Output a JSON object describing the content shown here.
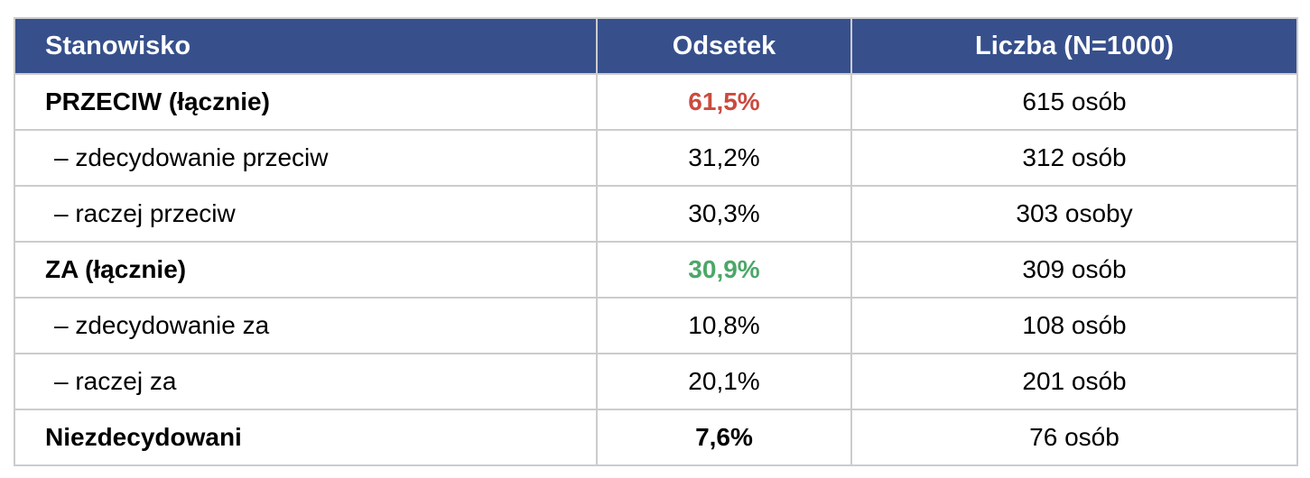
{
  "table": {
    "columns": {
      "position": "Stanowisko",
      "percent": "Odsetek",
      "count": "Liczba (N=1000)"
    },
    "rows": [
      {
        "label": "PRZECIW (łącznie)",
        "percent": "61,5%",
        "count": "615 osób",
        "percent_color": "#CB4A3E"
      },
      {
        "label": "– zdecydowanie przeciw",
        "percent": "31,2%",
        "count": "312 osób",
        "percent_color": null
      },
      {
        "label": "– raczej przeciw",
        "percent": "30,3%",
        "count": "303 osoby",
        "percent_color": null
      },
      {
        "label": "ZA (łącznie)",
        "percent": "30,9%",
        "count": "309 osób",
        "percent_color": "#4CA769"
      },
      {
        "label": "– zdecydowanie za",
        "percent": "10,8%",
        "count": "108 osób",
        "percent_color": null
      },
      {
        "label": "– raczej za",
        "percent": "20,1%",
        "count": "201 osób",
        "percent_color": null
      },
      {
        "label": "Niezdecydowani",
        "percent": "7,6%",
        "count": "76 osób",
        "percent_color": null
      }
    ]
  },
  "colors": {
    "header_background": "#37508C",
    "header_text": "#FFFFFF",
    "grid_border": "#CCCCCC",
    "against_accent": "#CB4A3E",
    "for_accent": "#4CA769",
    "body_text": "#000000"
  },
  "chart_data": {
    "type": "table",
    "title": "",
    "columns": [
      "Stanowisko",
      "Odsetek",
      "Liczba (N=1000)"
    ],
    "sample_size": 1000,
    "rows": [
      {
        "stanowisko": "PRZECIW (łącznie)",
        "odsetek_pct": 61.5,
        "liczba": 615,
        "liczba_label": "615 osób",
        "emphasis": "bold-red"
      },
      {
        "stanowisko": "– zdecydowanie przeciw",
        "odsetek_pct": 31.2,
        "liczba": 312,
        "liczba_label": "312 osób",
        "emphasis": "none"
      },
      {
        "stanowisko": "– raczej przeciw",
        "odsetek_pct": 30.3,
        "liczba": 303,
        "liczba_label": "303 osoby",
        "emphasis": "none"
      },
      {
        "stanowisko": "ZA (łącznie)",
        "odsetek_pct": 30.9,
        "liczba": 309,
        "liczba_label": "309 osób",
        "emphasis": "bold-green"
      },
      {
        "stanowisko": "– zdecydowanie za",
        "odsetek_pct": 10.8,
        "liczba": 108,
        "liczba_label": "108 osób",
        "emphasis": "none"
      },
      {
        "stanowisko": "– raczej za",
        "odsetek_pct": 20.1,
        "liczba": 201,
        "liczba_label": "201 osób",
        "emphasis": "none"
      },
      {
        "stanowisko": "Niezdecydowani",
        "odsetek_pct": 7.6,
        "liczba": 76,
        "liczba_label": "76 osób",
        "emphasis": "bold"
      }
    ]
  }
}
